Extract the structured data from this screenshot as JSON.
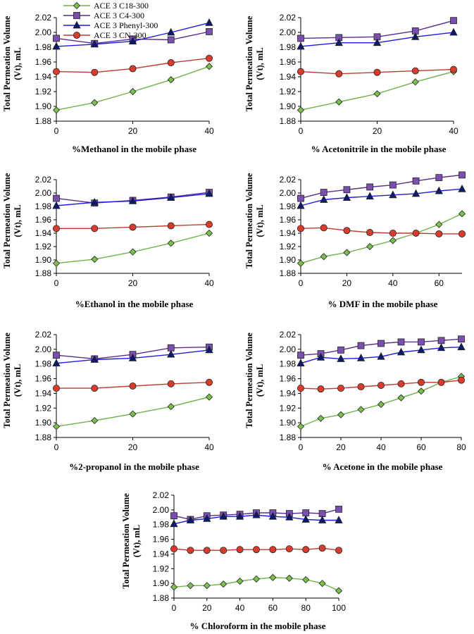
{
  "series_styles": [
    {
      "name": "ACE 3 C18-300",
      "line": "#70b04a",
      "fill": "#7bbf4e",
      "marker": "diamond"
    },
    {
      "name": "ACE 3 C4-300",
      "line": "#5b2a8c",
      "fill": "#7a4fb0",
      "marker": "square"
    },
    {
      "name": "ACE 3 Phenyl-300",
      "line": "#1a1ae0",
      "fill": "#0d1a6b",
      "marker": "triangle"
    },
    {
      "name": "ACE 3 CN-300",
      "line": "#c0392b",
      "fill": "#d93c2c",
      "marker": "circle"
    }
  ],
  "chart_data": [
    {
      "type": "line",
      "xlabel": "%Methanol in the mobile phase",
      "ylabel": [
        "Total Permeation Volume",
        "(Vt), mL"
      ],
      "xlim": [
        0,
        40
      ],
      "xticks": [
        0,
        20,
        40
      ],
      "ylim": [
        1.88,
        2.02
      ],
      "yticks": [
        1.88,
        1.9,
        1.92,
        1.94,
        1.96,
        1.98,
        2.0,
        2.02
      ],
      "x": [
        0,
        10,
        20,
        30,
        40
      ],
      "legend": [
        "ACE 3 C18-300",
        "ACE 3 C4-300",
        "ACE 3 Phenyl-300",
        "ACE 3 CN-300"
      ],
      "series": [
        {
          "name": "ACE 3 C18-300",
          "values": [
            1.895,
            1.905,
            1.92,
            1.936,
            1.954
          ]
        },
        {
          "name": "ACE 3 C4-300",
          "values": [
            1.992,
            1.985,
            1.991,
            1.99,
            2.001
          ]
        },
        {
          "name": "ACE 3 Phenyl-300",
          "values": [
            1.981,
            1.984,
            1.988,
            2.0,
            2.013
          ]
        },
        {
          "name": "ACE 3 CN-300",
          "values": [
            1.947,
            1.946,
            1.951,
            1.959,
            1.965
          ]
        }
      ]
    },
    {
      "type": "line",
      "xlabel": "% Acetonitrile in the mobile phase",
      "ylabel": [
        "Total Permeation Volume",
        "(Vt), mL"
      ],
      "xlim": [
        0,
        40
      ],
      "xticks": [
        0,
        20,
        40
      ],
      "ylim": [
        1.88,
        2.02
      ],
      "yticks": [
        1.88,
        1.9,
        1.92,
        1.94,
        1.96,
        1.98,
        2.0,
        2.02
      ],
      "x": [
        0,
        10,
        20,
        30,
        40
      ],
      "series": [
        {
          "name": "ACE 3 C18-300",
          "values": [
            1.895,
            1.906,
            1.917,
            1.933,
            1.947
          ]
        },
        {
          "name": "ACE 3 C4-300",
          "values": [
            1.992,
            1.993,
            1.994,
            2.002,
            2.016
          ]
        },
        {
          "name": "ACE 3 Phenyl-300",
          "values": [
            1.981,
            1.986,
            1.986,
            1.994,
            2.0
          ]
        },
        {
          "name": "ACE 3 CN-300",
          "values": [
            1.947,
            1.944,
            1.946,
            1.948,
            1.95
          ]
        }
      ]
    },
    {
      "type": "line",
      "xlabel": "%Ethanol in the mobile phase",
      "ylabel": [
        "Total Permeation Volume",
        "(Vt), mL"
      ],
      "xlim": [
        0,
        40
      ],
      "xticks": [
        0,
        20,
        40
      ],
      "ylim": [
        1.88,
        2.02
      ],
      "yticks": [
        1.88,
        1.9,
        1.92,
        1.94,
        1.96,
        1.98,
        2.0,
        2.02
      ],
      "x": [
        0,
        10,
        20,
        30,
        40
      ],
      "series": [
        {
          "name": "ACE 3 C18-300",
          "values": [
            1.895,
            1.901,
            1.912,
            1.925,
            1.94
          ]
        },
        {
          "name": "ACE 3 C4-300",
          "values": [
            1.992,
            1.985,
            1.989,
            1.994,
            2.001
          ]
        },
        {
          "name": "ACE 3 Phenyl-300",
          "values": [
            1.981,
            1.986,
            1.988,
            1.993,
            1.999
          ]
        },
        {
          "name": "ACE 3 CN-300",
          "values": [
            1.947,
            1.947,
            1.949,
            1.951,
            1.953
          ]
        }
      ]
    },
    {
      "type": "line",
      "xlabel": "% DMF in the mobile phase",
      "ylabel": [
        "Total Permeation Volume",
        "(Vt), mL"
      ],
      "xlim": [
        0,
        70
      ],
      "xticks": [
        0,
        20,
        40,
        60
      ],
      "ylim": [
        1.88,
        2.02
      ],
      "yticks": [
        1.88,
        1.9,
        1.92,
        1.94,
        1.96,
        1.98,
        2.0,
        2.02
      ],
      "x": [
        0,
        10,
        20,
        30,
        40,
        50,
        60,
        70
      ],
      "series": [
        {
          "name": "ACE 3 C18-300",
          "values": [
            1.895,
            1.905,
            1.911,
            1.92,
            1.929,
            1.94,
            1.953,
            1.969
          ]
        },
        {
          "name": "ACE 3 C4-300",
          "values": [
            1.992,
            2.001,
            2.005,
            2.009,
            2.012,
            2.018,
            2.023,
            2.027
          ]
        },
        {
          "name": "ACE 3 Phenyl-300",
          "values": [
            1.981,
            1.99,
            1.993,
            1.995,
            1.997,
            1.999,
            2.003,
            2.006
          ]
        },
        {
          "name": "ACE 3 CN-300",
          "values": [
            1.947,
            1.948,
            1.944,
            1.941,
            1.94,
            1.94,
            1.939,
            1.939
          ]
        }
      ]
    },
    {
      "type": "line",
      "xlabel": "%2-propanol in the mobile phase",
      "ylabel": [
        "Total Permeation Volume",
        "(Vt), mL"
      ],
      "xlim": [
        0,
        40
      ],
      "xticks": [
        0,
        20,
        40
      ],
      "ylim": [
        1.88,
        2.02
      ],
      "yticks": [
        1.88,
        1.9,
        1.92,
        1.94,
        1.96,
        1.98,
        2.0,
        2.02
      ],
      "x": [
        0,
        10,
        20,
        30,
        40
      ],
      "series": [
        {
          "name": "ACE 3 C18-300",
          "values": [
            1.895,
            1.903,
            1.912,
            1.922,
            1.935
          ]
        },
        {
          "name": "ACE 3 C4-300",
          "values": [
            1.992,
            1.987,
            1.993,
            2.002,
            2.003
          ]
        },
        {
          "name": "ACE 3 Phenyl-300",
          "values": [
            1.981,
            1.986,
            1.988,
            1.993,
            1.999
          ]
        },
        {
          "name": "ACE 3 CN-300",
          "values": [
            1.947,
            1.947,
            1.95,
            1.953,
            1.955
          ]
        }
      ]
    },
    {
      "type": "line",
      "xlabel": "% Acetone in the mobile phase",
      "ylabel": [
        "Total Permeation Volume",
        "(Vt), mL"
      ],
      "xlim": [
        0,
        80
      ],
      "xticks": [
        0,
        20,
        40,
        60,
        80
      ],
      "ylim": [
        1.88,
        2.02
      ],
      "yticks": [
        1.88,
        1.9,
        1.92,
        1.94,
        1.96,
        1.98,
        2.0,
        2.02
      ],
      "x": [
        0,
        10,
        20,
        30,
        40,
        50,
        60,
        70,
        80
      ],
      "series": [
        {
          "name": "ACE 3 C18-300",
          "values": [
            1.895,
            1.906,
            1.911,
            1.918,
            1.925,
            1.934,
            1.943,
            1.955,
            1.963
          ]
        },
        {
          "name": "ACE 3 C4-300",
          "values": [
            1.992,
            1.994,
            1.999,
            2.005,
            2.008,
            2.01,
            2.01,
            2.012,
            2.014
          ]
        },
        {
          "name": "ACE 3 Phenyl-300",
          "values": [
            1.981,
            1.989,
            1.987,
            1.988,
            1.99,
            1.996,
            1.999,
            2.002,
            2.003
          ]
        },
        {
          "name": "ACE 3 CN-300",
          "values": [
            1.947,
            1.946,
            1.947,
            1.949,
            1.951,
            1.953,
            1.955,
            1.955,
            1.958
          ]
        }
      ]
    },
    {
      "type": "line",
      "xlabel": "% Chloroform in the mobile phase",
      "ylabel": [
        "Total Permeation Volume",
        "(Vt), mL"
      ],
      "xlim": [
        0,
        100
      ],
      "xticks": [
        0,
        20,
        40,
        60,
        80,
        100
      ],
      "ylim": [
        1.88,
        2.02
      ],
      "yticks": [
        1.88,
        1.9,
        1.92,
        1.94,
        1.96,
        1.98,
        2.0,
        2.02
      ],
      "x": [
        0,
        10,
        20,
        30,
        40,
        50,
        60,
        70,
        80,
        90,
        100
      ],
      "series": [
        {
          "name": "ACE 3 C18-300",
          "values": [
            1.895,
            1.897,
            1.897,
            1.899,
            1.903,
            1.906,
            1.908,
            1.907,
            1.905,
            1.9,
            1.89
          ]
        },
        {
          "name": "ACE 3 C4-300",
          "values": [
            1.992,
            1.987,
            1.992,
            1.993,
            1.994,
            1.996,
            1.996,
            1.995,
            1.996,
            1.995,
            2.001
          ]
        },
        {
          "name": "ACE 3 Phenyl-300",
          "values": [
            1.981,
            1.986,
            1.988,
            1.991,
            1.991,
            1.993,
            1.991,
            1.99,
            1.987,
            1.986,
            1.986
          ]
        },
        {
          "name": "ACE 3 CN-300",
          "values": [
            1.947,
            1.945,
            1.945,
            1.945,
            1.946,
            1.946,
            1.946,
            1.947,
            1.946,
            1.948,
            1.945
          ]
        }
      ]
    }
  ]
}
